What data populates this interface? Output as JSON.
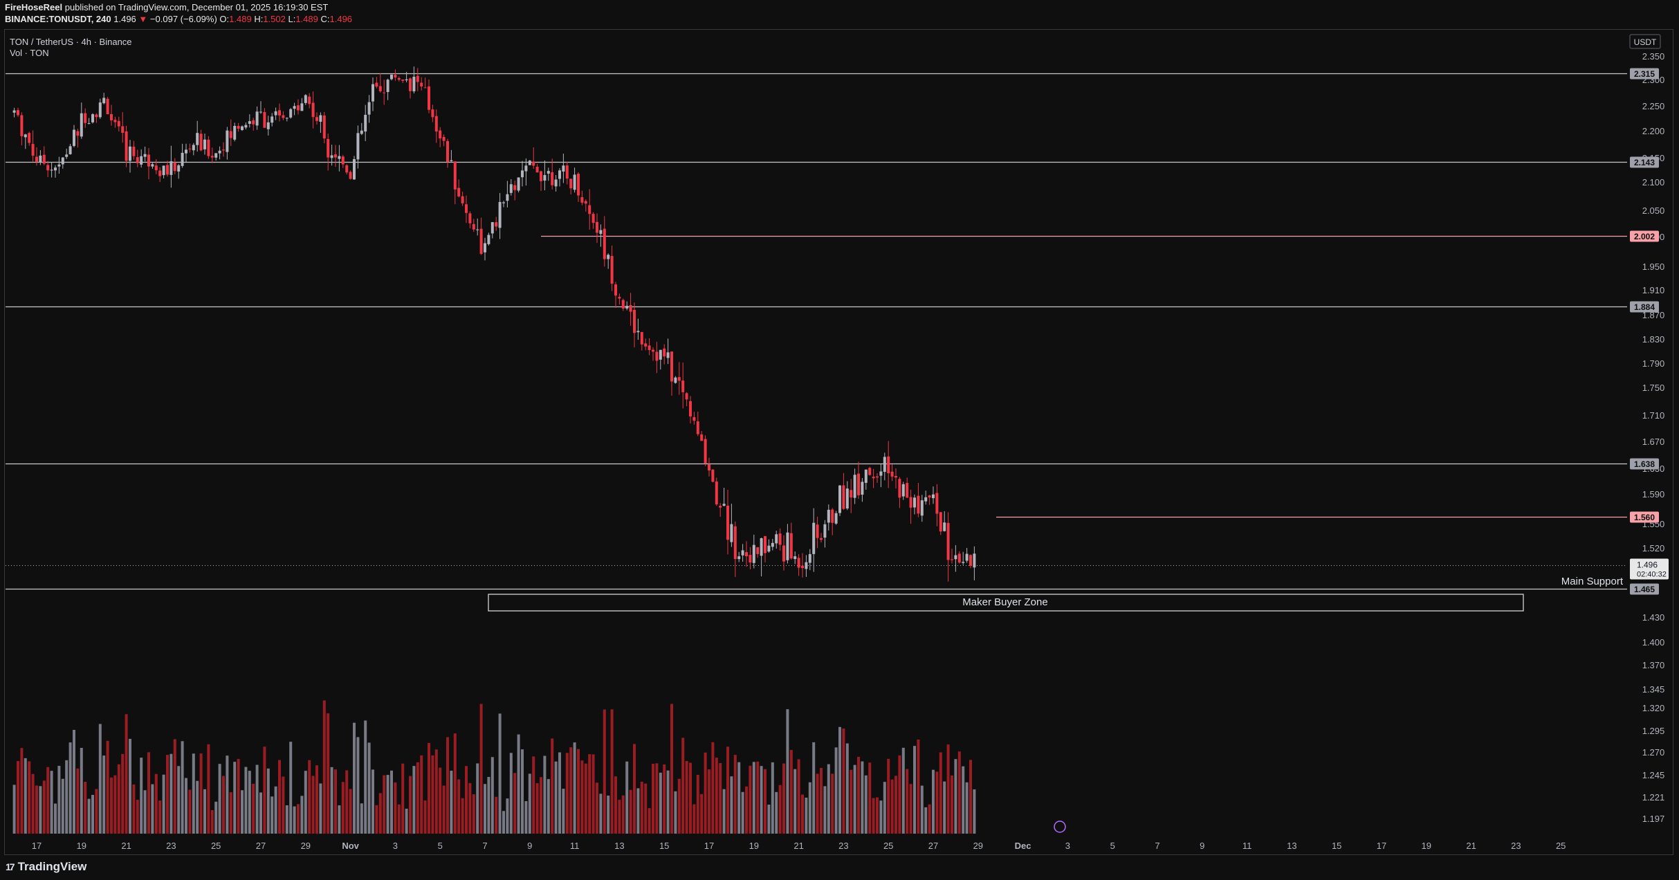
{
  "header": {
    "author": "FireHoseReel",
    "published": "published on TradingView.com, December 01, 2025 16:19:30 EST",
    "symbol": "BINANCE:TONUSDT, 240",
    "last": "1.496",
    "change": "−0.097 (−6.09%)",
    "o_label": "O:",
    "o": "1.489",
    "h_label": "H:",
    "h": "1.502",
    "l_label": "L:",
    "l": "1.489",
    "c_label": "C:",
    "c": "1.496"
  },
  "legend": {
    "title": "TON / TetherUS · 4h · Binance",
    "vol": "Vol · TON"
  },
  "currency": "USDT",
  "footer": {
    "brand": "TradingView"
  },
  "colors": {
    "up": "#b2b5be",
    "down": "#f23645",
    "volume_up": "#787b86",
    "volume_down": "#9c1c24",
    "level_white": "#c8c8c8",
    "level_pink": "#f7a1a8",
    "background": "#0f0f0f"
  },
  "chart_data": {
    "type": "candlestick",
    "title": "TON / TetherUS · 4h · Binance",
    "y_axis_ticks": [
      "2.350",
      "2.300",
      "2.250",
      "2.200",
      "2.150",
      "2.100",
      "2.050",
      "2.000",
      "1.950",
      "1.910",
      "1.870",
      "1.830",
      "1.790",
      "1.750",
      "1.710",
      "1.670",
      "1.630",
      "1.590",
      "1.550",
      "1.520",
      "1.480",
      "1.430",
      "1.400",
      "1.370",
      "1.345",
      "1.320",
      "1.295",
      "1.270",
      "1.245",
      "1.221",
      "1.197"
    ],
    "x_axis_ticks": [
      "17",
      "19",
      "21",
      "23",
      "25",
      "27",
      "29",
      "Nov",
      "3",
      "5",
      "7",
      "9",
      "11",
      "13",
      "15",
      "17",
      "19",
      "21",
      "23",
      "25",
      "27",
      "29",
      "Dec",
      "3",
      "5",
      "7",
      "9",
      "11",
      "13",
      "15",
      "17",
      "19",
      "21",
      "23",
      "25"
    ],
    "price_range": [
      1.18,
      2.37
    ],
    "levels": [
      {
        "price": 2.315,
        "label": "2.315",
        "color": "white"
      },
      {
        "price": 2.143,
        "label": "2.143",
        "color": "white"
      },
      {
        "price": 2.002,
        "label": "2.002",
        "color": "pink"
      },
      {
        "price": 1.884,
        "label": "1.884",
        "color": "white"
      },
      {
        "price": 1.638,
        "label": "1.638",
        "color": "white"
      },
      {
        "price": 1.56,
        "label": "1.560",
        "color": "pink"
      },
      {
        "price": 1.465,
        "label": "1.465",
        "color": "white"
      }
    ],
    "last_price": {
      "label": "1.496",
      "countdown": "02:40:32",
      "price": 1.496
    },
    "annotations": {
      "main_support": "Main Support",
      "zone": "Maker Buyer Zone"
    },
    "close_path": [
      [
        16,
        2.24
      ],
      [
        17,
        2.15
      ],
      [
        18,
        2.13
      ],
      [
        19,
        2.22
      ],
      [
        20,
        2.26
      ],
      [
        21,
        2.16
      ],
      [
        22,
        2.15
      ],
      [
        23,
        2.12
      ],
      [
        24,
        2.18
      ],
      [
        25,
        2.16
      ],
      [
        26,
        2.21
      ],
      [
        27,
        2.23
      ],
      [
        28,
        2.22
      ],
      [
        29,
        2.27
      ],
      [
        30,
        2.18
      ],
      [
        31,
        2.12
      ],
      [
        32,
        2.28
      ],
      [
        33,
        2.31
      ],
      [
        34,
        2.3
      ],
      [
        35,
        2.2
      ],
      [
        36,
        2.06
      ],
      [
        37,
        1.98
      ],
      [
        38,
        2.08
      ],
      [
        39,
        2.13
      ],
      [
        40,
        2.12
      ],
      [
        41,
        2.1
      ],
      [
        42,
        2.02
      ],
      [
        43,
        1.9
      ],
      [
        44,
        1.83
      ],
      [
        45,
        1.8
      ],
      [
        46,
        1.73
      ],
      [
        47,
        1.63
      ],
      [
        48,
        1.53
      ],
      [
        49,
        1.51
      ],
      [
        50,
        1.53
      ],
      [
        51,
        1.5
      ],
      [
        52,
        1.54
      ],
      [
        53,
        1.59
      ],
      [
        54,
        1.63
      ],
      [
        55,
        1.62
      ],
      [
        56,
        1.58
      ],
      [
        57,
        1.58
      ],
      [
        58,
        1.49
      ],
      [
        59,
        1.5
      ]
    ],
    "volume_range": [
      0,
      1.0
    ]
  }
}
